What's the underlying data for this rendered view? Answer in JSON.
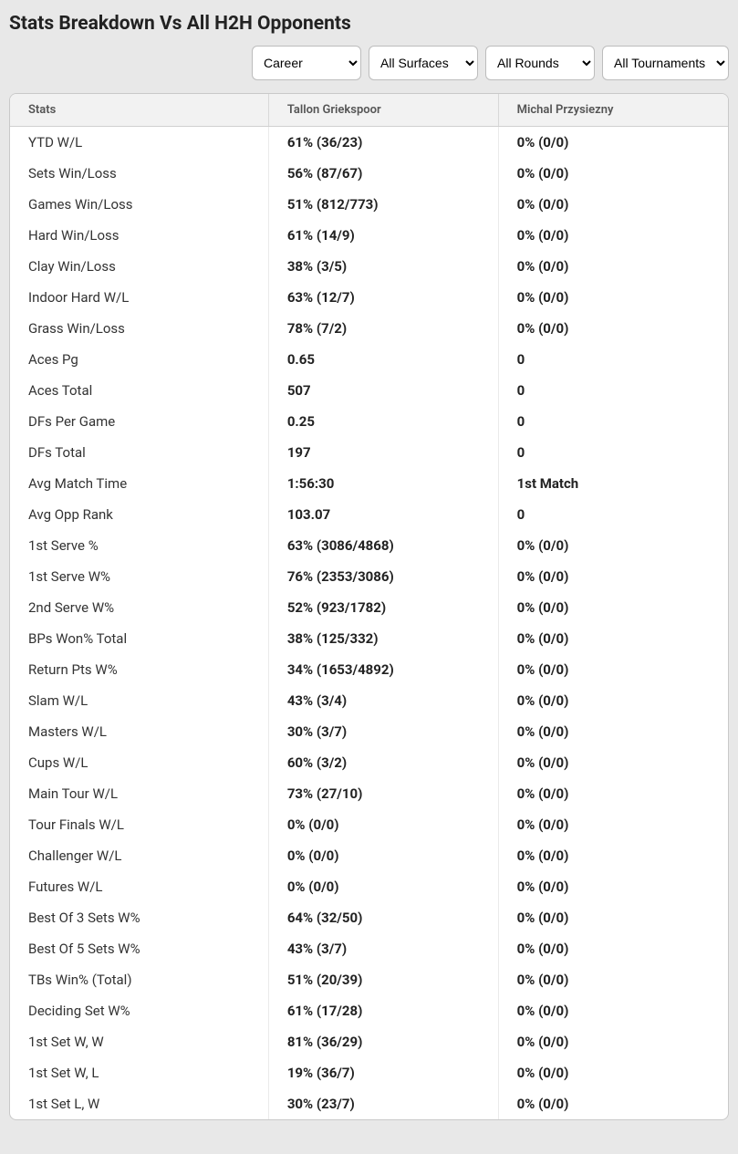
{
  "title": "Stats Breakdown Vs All H2H Opponents",
  "filters": {
    "period": {
      "selected": "Career",
      "options": [
        "Career"
      ]
    },
    "surface": {
      "selected": "All Surfaces",
      "options": [
        "All Surfaces"
      ]
    },
    "round": {
      "selected": "All Rounds",
      "options": [
        "All Rounds"
      ]
    },
    "tournament": {
      "selected": "All Tournaments",
      "options": [
        "All Tournaments"
      ]
    }
  },
  "columns": {
    "stat": "Stats",
    "p1": "Tallon Griekspoor",
    "p2": "Michal Przysiezny"
  },
  "rows": [
    {
      "label": "YTD W/L",
      "p1": "61% (36/23)",
      "p2": "0% (0/0)"
    },
    {
      "label": "Sets Win/Loss",
      "p1": "56% (87/67)",
      "p2": "0% (0/0)"
    },
    {
      "label": "Games Win/Loss",
      "p1": "51% (812/773)",
      "p2": "0% (0/0)"
    },
    {
      "label": "Hard Win/Loss",
      "p1": "61% (14/9)",
      "p2": "0% (0/0)"
    },
    {
      "label": "Clay Win/Loss",
      "p1": "38% (3/5)",
      "p2": "0% (0/0)"
    },
    {
      "label": "Indoor Hard W/L",
      "p1": "63% (12/7)",
      "p2": "0% (0/0)"
    },
    {
      "label": "Grass Win/Loss",
      "p1": "78% (7/2)",
      "p2": "0% (0/0)"
    },
    {
      "label": "Aces Pg",
      "p1": "0.65",
      "p2": "0"
    },
    {
      "label": "Aces Total",
      "p1": "507",
      "p2": "0"
    },
    {
      "label": "DFs Per Game",
      "p1": "0.25",
      "p2": "0"
    },
    {
      "label": "DFs Total",
      "p1": "197",
      "p2": "0"
    },
    {
      "label": "Avg Match Time",
      "p1": "1:56:30",
      "p2": "1st Match"
    },
    {
      "label": "Avg Opp Rank",
      "p1": "103.07",
      "p2": "0"
    },
    {
      "label": "1st Serve %",
      "p1": "63% (3086/4868)",
      "p2": "0% (0/0)"
    },
    {
      "label": "1st Serve W%",
      "p1": "76% (2353/3086)",
      "p2": "0% (0/0)"
    },
    {
      "label": "2nd Serve W%",
      "p1": "52% (923/1782)",
      "p2": "0% (0/0)"
    },
    {
      "label": "BPs Won% Total",
      "p1": "38% (125/332)",
      "p2": "0% (0/0)"
    },
    {
      "label": "Return Pts W%",
      "p1": "34% (1653/4892)",
      "p2": "0% (0/0)"
    },
    {
      "label": "Slam W/L",
      "p1": "43% (3/4)",
      "p2": "0% (0/0)"
    },
    {
      "label": "Masters W/L",
      "p1": "30% (3/7)",
      "p2": "0% (0/0)"
    },
    {
      "label": "Cups W/L",
      "p1": "60% (3/2)",
      "p2": "0% (0/0)"
    },
    {
      "label": "Main Tour W/L",
      "p1": "73% (27/10)",
      "p2": "0% (0/0)"
    },
    {
      "label": "Tour Finals W/L",
      "p1": "0% (0/0)",
      "p2": "0% (0/0)"
    },
    {
      "label": "Challenger W/L",
      "p1": "0% (0/0)",
      "p2": "0% (0/0)"
    },
    {
      "label": "Futures W/L",
      "p1": "0% (0/0)",
      "p2": "0% (0/0)"
    },
    {
      "label": "Best Of 3 Sets W%",
      "p1": "64% (32/50)",
      "p2": "0% (0/0)"
    },
    {
      "label": "Best Of 5 Sets W%",
      "p1": "43% (3/7)",
      "p2": "0% (0/0)"
    },
    {
      "label": "TBs Win% (Total)",
      "p1": "51% (20/39)",
      "p2": "0% (0/0)"
    },
    {
      "label": "Deciding Set W%",
      "p1": "61% (17/28)",
      "p2": "0% (0/0)"
    },
    {
      "label": "1st Set W, W",
      "p1": "81% (36/29)",
      "p2": "0% (0/0)"
    },
    {
      "label": "1st Set W, L",
      "p1": "19% (36/7)",
      "p2": "0% (0/0)"
    },
    {
      "label": "1st Set L, W",
      "p1": "30% (23/7)",
      "p2": "0% (0/0)"
    }
  ]
}
